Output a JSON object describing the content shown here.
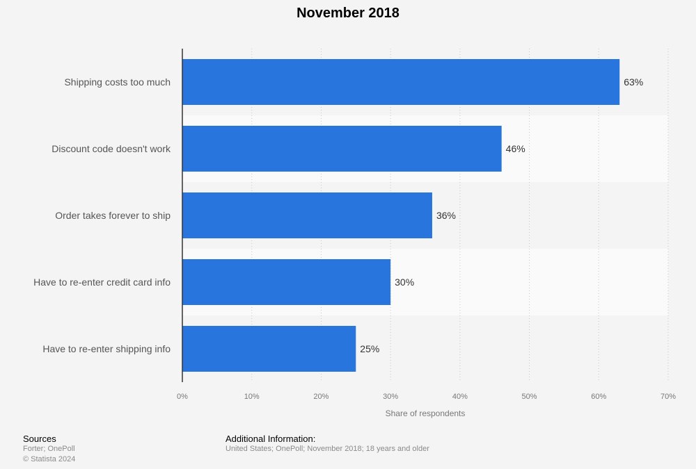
{
  "chart_data": {
    "type": "bar",
    "orientation": "horizontal",
    "title": "November 2018",
    "categories": [
      "Shipping costs too much",
      "Discount code doesn't work",
      "Order takes forever to ship",
      "Have to re-enter credit card info",
      "Have to re-enter shipping info"
    ],
    "values": [
      63,
      46,
      36,
      30,
      25
    ],
    "value_labels": [
      "63%",
      "46%",
      "36%",
      "30%",
      "25%"
    ],
    "xlabel": "Share of respondents",
    "ylabel": "",
    "xlim": [
      0,
      70
    ],
    "x_ticks": [
      0,
      10,
      20,
      30,
      40,
      50,
      60,
      70
    ],
    "x_tick_labels": [
      "0%",
      "10%",
      "20%",
      "30%",
      "40%",
      "50%",
      "60%",
      "70%"
    ],
    "grid": true,
    "bar_color": "#2876dd"
  },
  "footer": {
    "sources_heading": "Sources",
    "sources_line1": "Forter; OnePoll",
    "sources_line2": "© Statista 2024",
    "additional_heading": "Additional Information:",
    "additional_text": "United States; OnePoll; November 2018; 18 years and older"
  }
}
